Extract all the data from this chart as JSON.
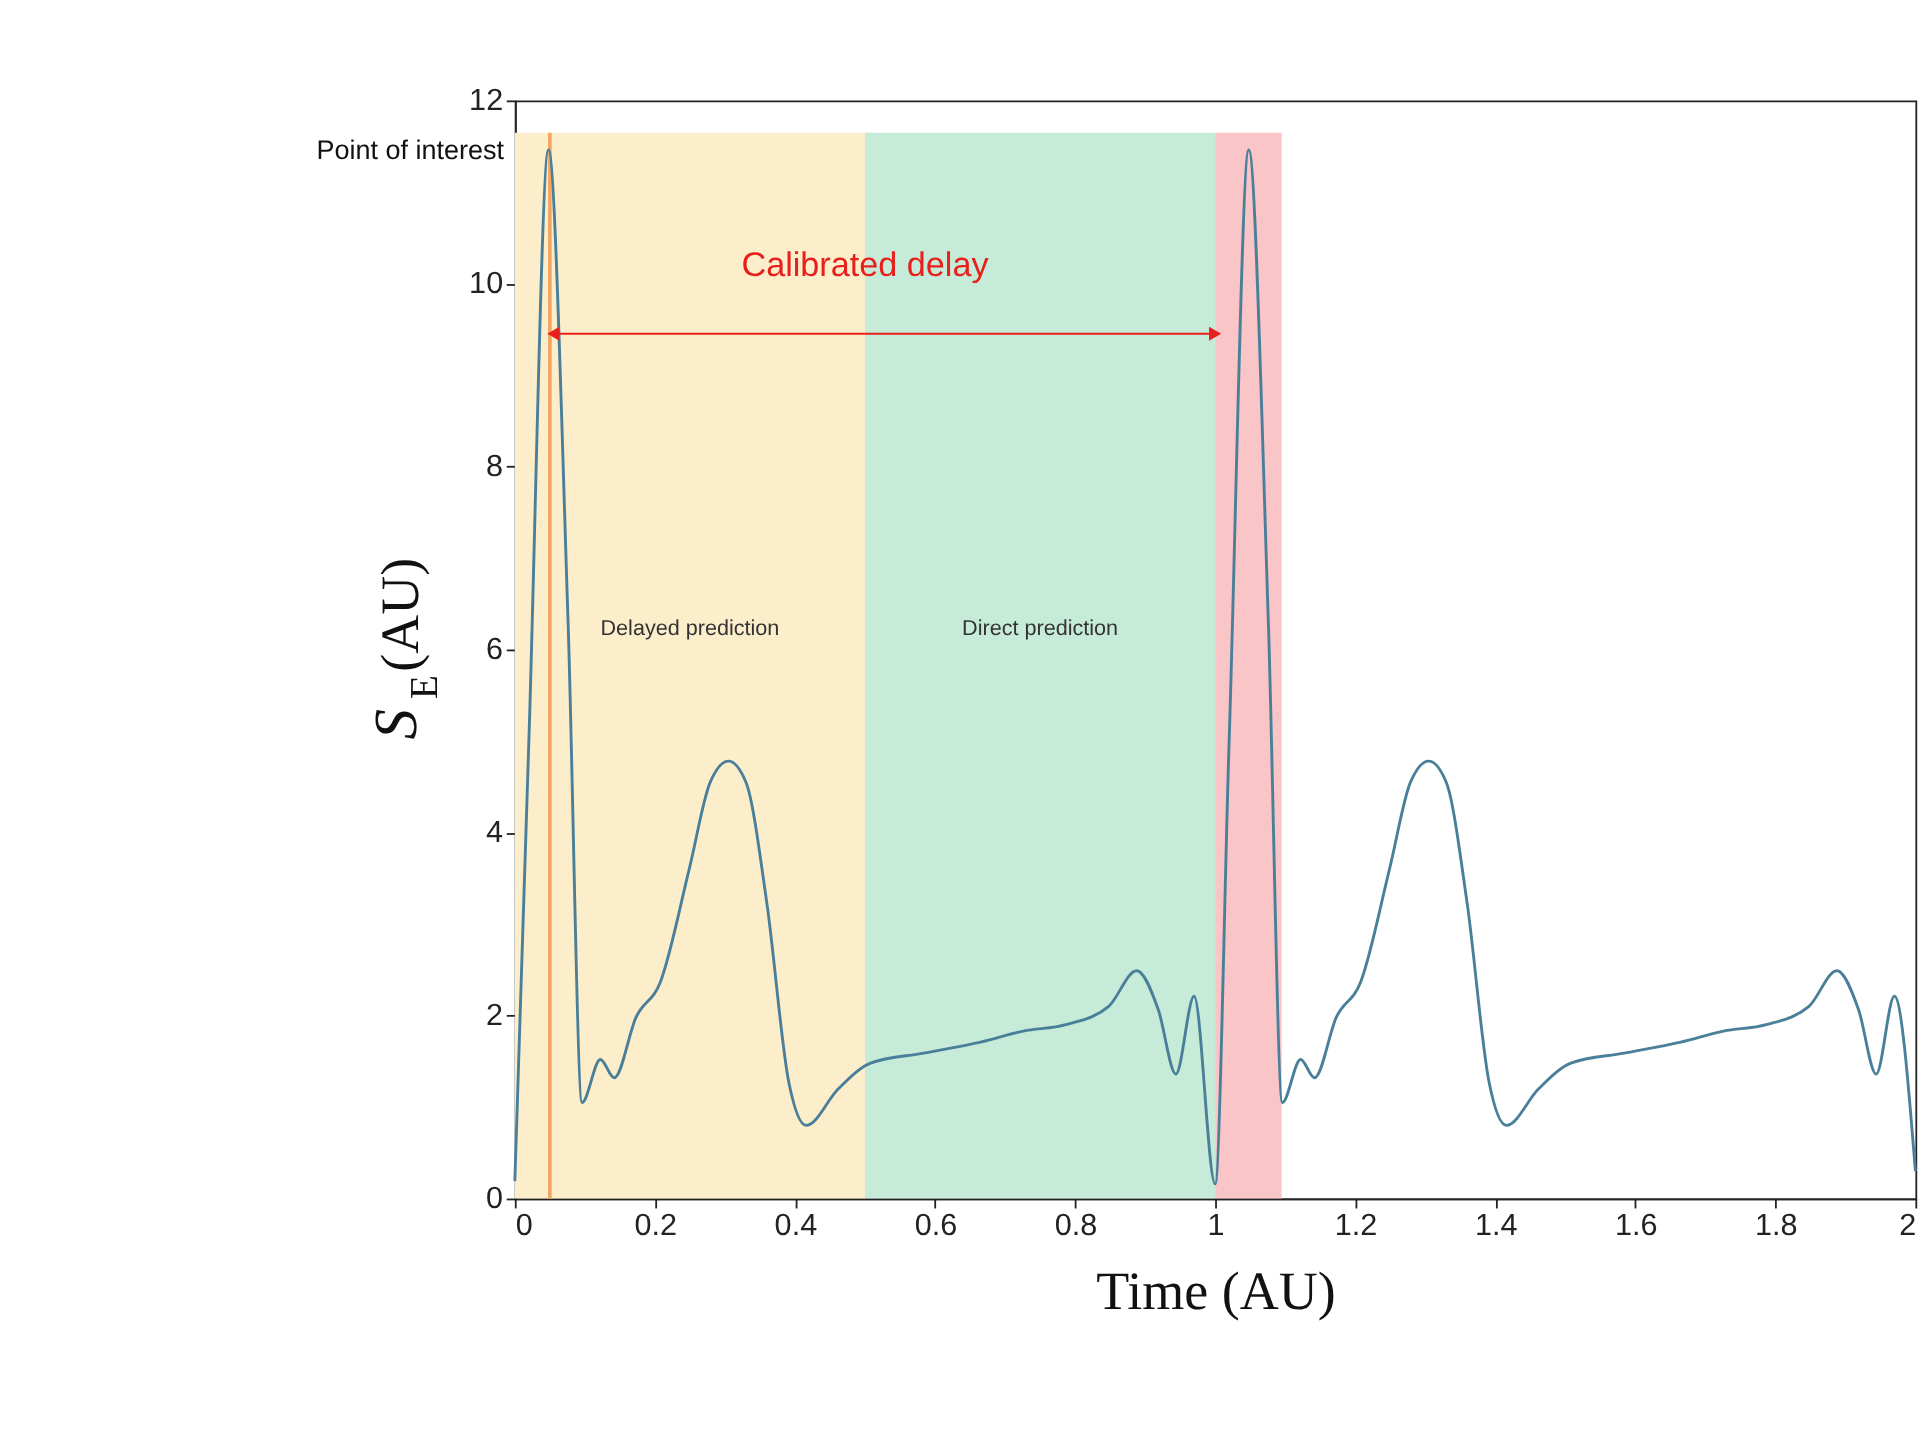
{
  "chart_data": {
    "type": "line",
    "xlabel": "Time (AU)",
    "ylabel": "S$_{E}$(AU)",
    "xlim": [
      0,
      2
    ],
    "ylim": [
      0,
      12
    ],
    "xticks": [
      0,
      0.2,
      0.4,
      0.6,
      0.8,
      1,
      1.2,
      1.4,
      1.6,
      1.8,
      2
    ],
    "yticks": [
      0,
      2,
      4,
      6,
      8,
      10,
      12
    ],
    "grid": false,
    "series": [
      {
        "color": "#4a7f9a",
        "x": [
          0,
          0.02,
          0.048,
          0.076,
          0.096,
          0.122,
          0.142,
          0.173,
          0.208,
          0.249,
          0.279,
          0.305,
          0.33,
          0.36,
          0.391,
          0.416,
          0.462,
          0.508,
          0.584,
          0.665,
          0.726,
          0.787,
          0.848,
          0.888,
          0.919,
          0.944,
          0.97,
          1.0,
          1.02,
          1.048,
          1.076,
          1.096,
          1.122,
          1.142,
          1.173,
          1.208,
          1.249,
          1.279,
          1.305,
          1.33,
          1.36,
          1.391,
          1.416,
          1.462,
          1.508,
          1.584,
          1.665,
          1.726,
          1.787,
          1.848,
          1.888,
          1.919,
          1.944,
          1.97,
          2.0
        ],
        "values": [
          0.19,
          5.0,
          11.46,
          6.3,
          1.05,
          1.52,
          1.32,
          1.98,
          2.37,
          3.6,
          4.55,
          4.78,
          4.55,
          3.22,
          1.28,
          0.8,
          1.2,
          1.48,
          1.59,
          1.71,
          1.83,
          1.9,
          2.1,
          2.49,
          2.06,
          1.36,
          2.21,
          0.16,
          5.0,
          11.46,
          6.3,
          1.05,
          1.52,
          1.32,
          1.98,
          2.37,
          3.6,
          4.55,
          4.78,
          4.55,
          3.22,
          1.28,
          0.8,
          1.2,
          1.48,
          1.59,
          1.71,
          1.83,
          1.9,
          2.1,
          2.49,
          2.06,
          1.36,
          2.21,
          0.3
        ]
      },
      {
        "type": "line",
        "color": "#e8201c",
        "marker": "triangle",
        "x": [
          0.055,
          1.0
        ],
        "values": [
          9.45,
          9.45
        ]
      }
    ],
    "bands": [
      {
        "axis": "x",
        "from": 0,
        "to": 0.5,
        "label": "Delayed prediction",
        "color": "#fdeecb"
      },
      {
        "axis": "x",
        "from": 0.5,
        "to": 1.0,
        "label": "Direct prediction",
        "color": "#c6ecd9"
      },
      {
        "axis": "x",
        "from": 1.0,
        "to": 1.095,
        "label": null,
        "color": "#f9c5c6"
      }
    ],
    "ref_lines": [
      {
        "axis": "x",
        "value": 0.05,
        "label": null,
        "color": "#f4a460"
      }
    ],
    "annotations": [
      {
        "text": "Point of interest",
        "x": 0.048,
        "y": 11.46
      },
      {
        "text": "Calibrated delay",
        "x": 0.5,
        "y": 10.2
      }
    ]
  }
}
